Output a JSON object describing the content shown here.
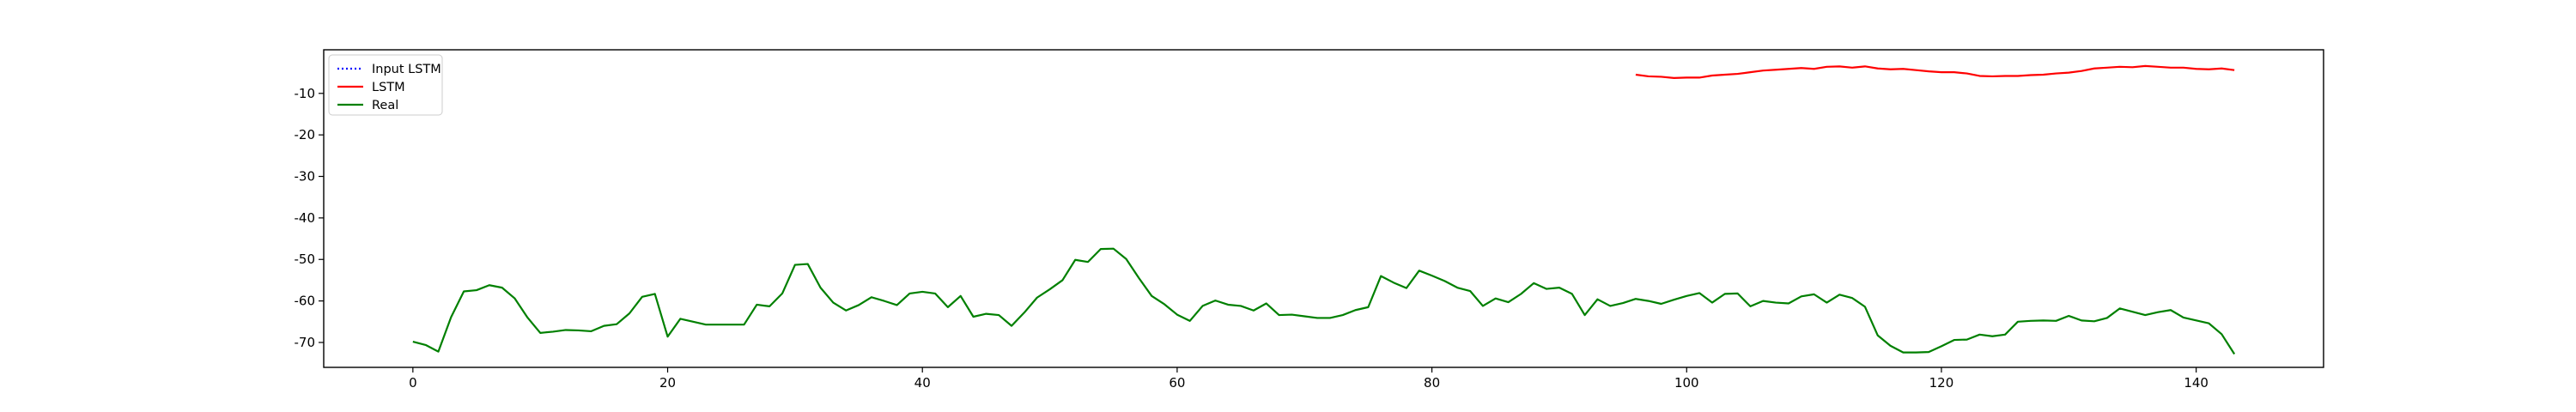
{
  "chart_data": {
    "type": "line",
    "title": "",
    "xlabel": "",
    "ylabel": "",
    "xlim": [
      -7,
      150
    ],
    "ylim": [
      -76,
      0.5
    ],
    "x_ticks": [
      0,
      20,
      40,
      60,
      80,
      100,
      120,
      140
    ],
    "y_ticks": [
      -10,
      -20,
      -30,
      -40,
      -50,
      -60,
      -70
    ],
    "grid": false,
    "legend_position": "top-left",
    "legend": [
      "Input LSTM",
      "LSTM",
      "Real"
    ],
    "series": [
      {
        "name": "Input LSTM",
        "color": "#0000ff",
        "style": "dotted",
        "x": [],
        "y": []
      },
      {
        "name": "LSTM",
        "color": "#ff0000",
        "style": "solid",
        "x": [
          96,
          97,
          98,
          99,
          100,
          101,
          102,
          103,
          104,
          105,
          106,
          107,
          108,
          109,
          110,
          111,
          112,
          113,
          114,
          115,
          116,
          117,
          118,
          119,
          120,
          121,
          122,
          123,
          124,
          125,
          126,
          127,
          128,
          129,
          130,
          131,
          132,
          133,
          134,
          135,
          136,
          137,
          138,
          139,
          140,
          141,
          142,
          143
        ],
        "y": [
          -5.5,
          -5.9,
          -6.0,
          -6.3,
          -6.2,
          -6.2,
          -5.7,
          -5.5,
          -5.3,
          -4.9,
          -4.5,
          -4.3,
          -4.1,
          -3.9,
          -4.1,
          -3.6,
          -3.5,
          -3.8,
          -3.5,
          -4.0,
          -4.2,
          -4.1,
          -4.4,
          -4.7,
          -4.9,
          -4.9,
          -5.2,
          -5.8,
          -5.9,
          -5.8,
          -5.8,
          -5.6,
          -5.5,
          -5.2,
          -5.0,
          -4.6,
          -4.0,
          -3.8,
          -3.6,
          -3.7,
          -3.4,
          -3.6,
          -3.8,
          -3.8,
          -4.1,
          -4.2,
          -4.0,
          -4.4
        ]
      },
      {
        "name": "Real",
        "color": "#008000",
        "style": "solid",
        "x": [
          0,
          1,
          2,
          3,
          4,
          5,
          6,
          7,
          8,
          9,
          10,
          11,
          12,
          13,
          14,
          15,
          16,
          17,
          18,
          19,
          20,
          21,
          22,
          23,
          24,
          25,
          26,
          27,
          28,
          29,
          30,
          31,
          32,
          33,
          34,
          35,
          36,
          37,
          38,
          39,
          40,
          41,
          42,
          43,
          44,
          45,
          46,
          47,
          48,
          49,
          50,
          51,
          52,
          53,
          54,
          55,
          56,
          57,
          58,
          59,
          60,
          61,
          62,
          63,
          64,
          65,
          66,
          67,
          68,
          69,
          70,
          71,
          72,
          73,
          74,
          75,
          76,
          77,
          78,
          79,
          80,
          81,
          82,
          83,
          84,
          85,
          86,
          87,
          88,
          89,
          90,
          91,
          92,
          93,
          94,
          95,
          96,
          97,
          98,
          99,
          100,
          101,
          102,
          103,
          104,
          105,
          106,
          107,
          108,
          109,
          110,
          111,
          112,
          113,
          114,
          115,
          116,
          117,
          118,
          119,
          120,
          121,
          122,
          123,
          124,
          125,
          126,
          127,
          128,
          129,
          130,
          131,
          132,
          133,
          134,
          135,
          136,
          137,
          138,
          139,
          140,
          141,
          142,
          143
        ],
        "y": [
          -69.8,
          -70.6,
          -72.2,
          -63.9,
          -57.7,
          -57.4,
          -56.2,
          -56.8,
          -59.4,
          -64.0,
          -67.7,
          -67.4,
          -67.0,
          -67.1,
          -67.3,
          -66.0,
          -65.6,
          -63.0,
          -59.0,
          -58.3,
          -68.6,
          -64.3,
          -65.0,
          -65.7,
          -65.7,
          -65.7,
          -65.7,
          -60.9,
          -61.3,
          -58.2,
          -51.3,
          -51.1,
          -56.8,
          -60.4,
          -62.3,
          -61.0,
          -59.1,
          -60.0,
          -61.0,
          -58.2,
          -57.8,
          -58.2,
          -61.5,
          -58.8,
          -63.8,
          -63.1,
          -63.4,
          -66.0,
          -62.8,
          -59.2,
          -57.2,
          -55.0,
          -50.1,
          -50.6,
          -47.5,
          -47.4,
          -49.9,
          -54.5,
          -58.8,
          -60.8,
          -63.3,
          -64.8,
          -61.2,
          -59.9,
          -60.9,
          -61.2,
          -62.3,
          -60.6,
          -63.4,
          -63.3,
          -63.7,
          -64.1,
          -64.1,
          -63.4,
          -62.2,
          -61.5,
          -54.0,
          -55.6,
          -56.9,
          -52.7,
          -53.9,
          -55.2,
          -56.8,
          -57.6,
          -61.2,
          -59.4,
          -60.3,
          -58.3,
          -55.7,
          -57.1,
          -56.8,
          -58.3,
          -63.4,
          -59.6,
          -61.2,
          -60.5,
          -59.5,
          -60.0,
          -60.7,
          -59.7,
          -58.8,
          -58.1,
          -60.4,
          -58.3,
          -58.2,
          -61.3,
          -60.0,
          -60.4,
          -60.6,
          -58.9,
          -58.4,
          -60.4,
          -58.5,
          -59.3,
          -61.4,
          -68.3,
          -70.8,
          -72.4,
          -72.4,
          -72.3,
          -70.9,
          -69.4,
          -69.3,
          -68.1,
          -68.5,
          -68.1,
          -65.0,
          -64.8,
          -64.7,
          -64.8,
          -63.6,
          -64.7,
          -64.9,
          -64.1,
          -61.8,
          -62.6,
          -63.4,
          -62.7,
          -62.2,
          -64.0,
          -64.7,
          -65.4,
          -68.0,
          -72.8
        ]
      }
    ]
  }
}
